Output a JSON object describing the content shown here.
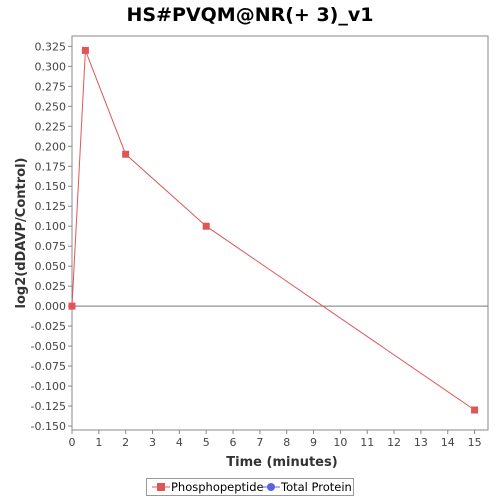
{
  "chart_data": {
    "type": "line",
    "title": "HS#PVQM@NR(+ 3)_v1",
    "xlabel": "Time (minutes)",
    "ylabel": "log2(dDAVP/Control)",
    "xlim": [
      0,
      15.5
    ],
    "ylim": [
      -0.155,
      0.338
    ],
    "x_ticks": [
      0,
      1,
      2,
      3,
      4,
      5,
      6,
      7,
      8,
      9,
      10,
      11,
      12,
      13,
      14,
      15
    ],
    "y_ticks": [
      -0.15,
      -0.125,
      -0.1,
      -0.075,
      -0.05,
      -0.025,
      0,
      0.025,
      0.05,
      0.075,
      0.1,
      0.125,
      0.15,
      0.175,
      0.2,
      0.225,
      0.25,
      0.275,
      0.3,
      0.325
    ],
    "x_tick_labels": [
      "0",
      "1",
      "2",
      "3",
      "4",
      "5",
      "6",
      "7",
      "8",
      "9",
      "10",
      "11",
      "12",
      "13",
      "14",
      "15"
    ],
    "y_tick_labels": [
      "-0.150",
      "-0.125",
      "-0.100",
      "-0.075",
      "-0.050",
      "-0.025",
      "0.000",
      "0.025",
      "0.050",
      "0.075",
      "0.100",
      "0.125",
      "0.150",
      "0.175",
      "0.200",
      "0.225",
      "0.250",
      "0.275",
      "0.300",
      "0.325"
    ],
    "series": [
      {
        "name": "Phosphopeptide",
        "color": "#e05555",
        "marker": "square",
        "x": [
          0,
          0.5,
          2,
          5,
          15
        ],
        "y": [
          0.0,
          0.32,
          0.19,
          0.1,
          -0.13
        ]
      },
      {
        "name": "Total Protein",
        "color": "#5566e0",
        "marker": "circle",
        "x": [],
        "y": []
      }
    ],
    "zero_line": true,
    "legend_position": "bottom-center"
  }
}
